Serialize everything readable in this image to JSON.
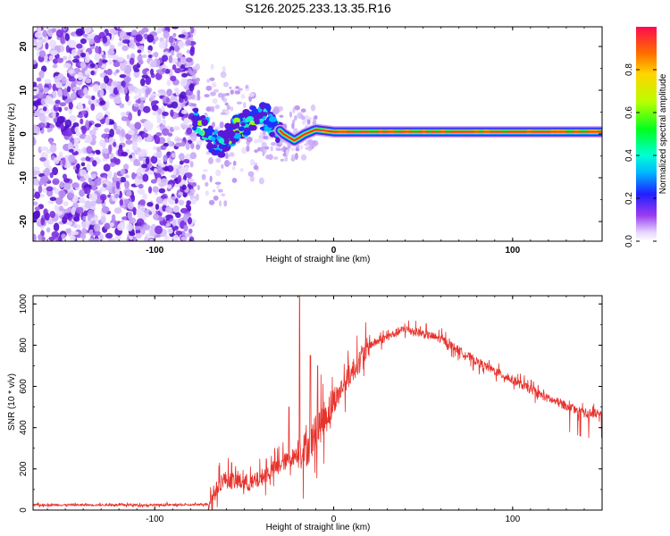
{
  "title": "S126.2025.233.13.35.R16",
  "colors": {
    "snr_line": "#e8322c",
    "ridge": "#ff2a2a",
    "noise_dark": "#6a1ee0",
    "noise_light": "#c9a6f5"
  },
  "chart_data": [
    {
      "type": "heatmap",
      "name": "spectrogram",
      "xlabel": "Height of straight line (km)",
      "ylabel": "Frequency (Hz)",
      "xlim": [
        -168,
        150
      ],
      "ylim": [
        -24.5,
        24.5
      ],
      "xticks": [
        -100,
        0,
        100
      ],
      "xtick_labels": [
        "-100",
        "0",
        "100"
      ],
      "yticks": [
        -20,
        -10,
        0,
        10,
        20
      ],
      "ytick_labels": [
        "-20",
        "-10",
        "0",
        "10",
        "20"
      ],
      "colorbar": {
        "label": "Normalized spectral amplitude",
        "range": [
          0,
          1
        ],
        "ticks": [
          0.0,
          0.2,
          0.4,
          0.6,
          0.8
        ],
        "tick_labels": [
          "0.0",
          "0.2",
          "0.4",
          "0.6",
          "0.8"
        ]
      },
      "regions": {
        "noise_x_range": [
          -168,
          -78
        ],
        "transition_x_range": [
          -78,
          -30
        ],
        "ridge_x_range": [
          -30,
          150
        ]
      },
      "ridge_frequency_track": [
        {
          "x": -78,
          "y": 3.5
        },
        {
          "x": -72,
          "y": 1.5
        },
        {
          "x": -65,
          "y": -3
        },
        {
          "x": -58,
          "y": 0
        },
        {
          "x": -52,
          "y": 2
        },
        {
          "x": -45,
          "y": 3.5
        },
        {
          "x": -38,
          "y": 4
        },
        {
          "x": -33,
          "y": 2
        },
        {
          "x": -28,
          "y": 0
        },
        {
          "x": -22,
          "y": -1.5
        },
        {
          "x": -16,
          "y": 0
        },
        {
          "x": -10,
          "y": 1
        },
        {
          "x": 0,
          "y": 0.5
        },
        {
          "x": 150,
          "y": 0.5
        }
      ]
    },
    {
      "type": "line",
      "name": "snr",
      "xlabel": "Height of straight line (km)",
      "ylabel": "SNR (10 * v/v)",
      "xlim": [
        -168,
        150
      ],
      "ylim": [
        0,
        1040
      ],
      "xticks": [
        -100,
        0,
        100
      ],
      "xtick_labels": [
        "-100",
        "0",
        "100"
      ],
      "yticks": [
        0,
        200,
        400,
        600,
        800,
        1000
      ],
      "ytick_labels": [
        "0",
        "200",
        "400",
        "600",
        "800",
        "1000"
      ],
      "trend": [
        {
          "x": -168,
          "y": 25
        },
        {
          "x": -80,
          "y": 25
        },
        {
          "x": -70,
          "y": 30
        },
        {
          "x": -62,
          "y": 150
        },
        {
          "x": -55,
          "y": 140
        },
        {
          "x": -45,
          "y": 130
        },
        {
          "x": -30,
          "y": 220
        },
        {
          "x": -15,
          "y": 300
        },
        {
          "x": -5,
          "y": 450
        },
        {
          "x": 5,
          "y": 600
        },
        {
          "x": 20,
          "y": 800
        },
        {
          "x": 40,
          "y": 880
        },
        {
          "x": 60,
          "y": 830
        },
        {
          "x": 80,
          "y": 720
        },
        {
          "x": 100,
          "y": 630
        },
        {
          "x": 120,
          "y": 540
        },
        {
          "x": 140,
          "y": 470
        },
        {
          "x": 150,
          "y": 470
        }
      ],
      "spikes": [
        {
          "x": -19,
          "y": 1040
        },
        {
          "x": -13,
          "y": 750
        },
        {
          "x": -9,
          "y": 700
        },
        {
          "x": -25,
          "y": 500
        },
        {
          "x": -57,
          "y": 230
        }
      ]
    }
  ]
}
